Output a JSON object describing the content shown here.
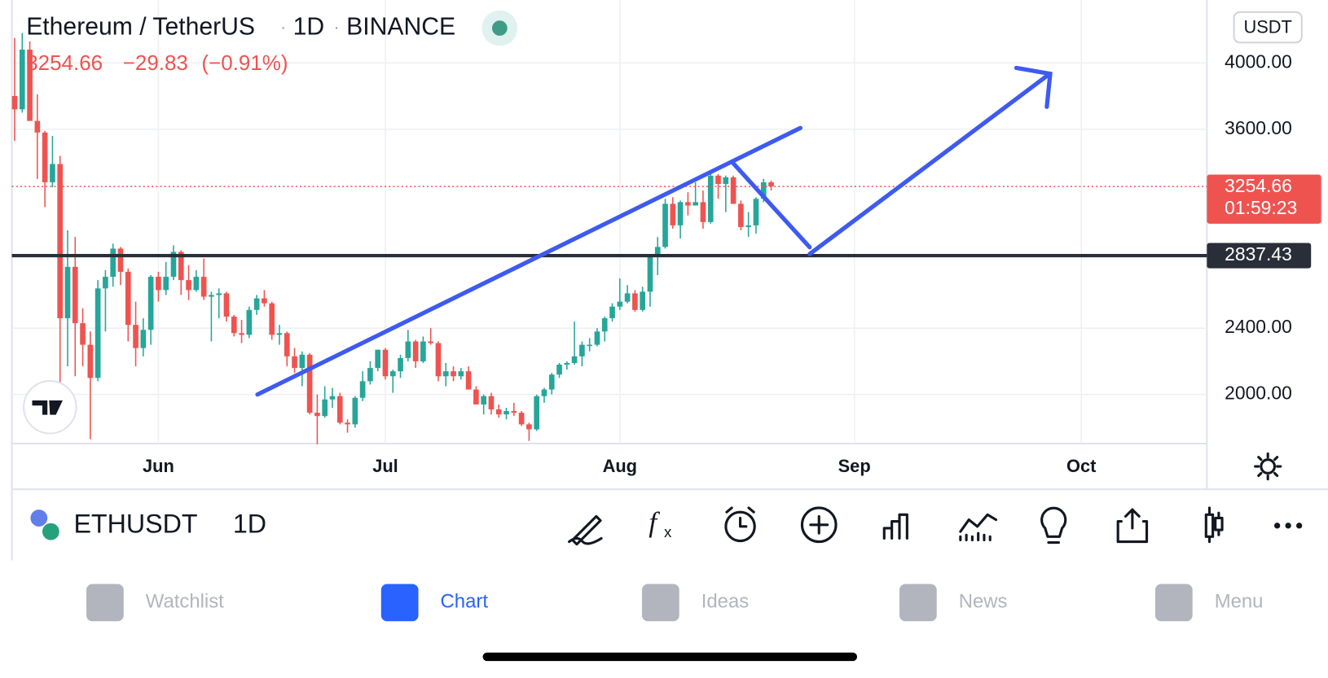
{
  "header": {
    "symbol_name": "Ethereum / TetherUS",
    "interval": "1D",
    "exchange": "BINANCE",
    "price": "3254.66",
    "change": "−29.83",
    "change_pct": "(−0.91%)",
    "currency": "USDT"
  },
  "chart_data": {
    "type": "candlestick",
    "open": [
      3800,
      3720,
      4080,
      3650,
      3580,
      3280,
      3390,
      2460,
      2770,
      2430,
      2300,
      2100,
      2640,
      2710,
      2880,
      2740,
      2420,
      2280,
      2390,
      2710,
      2630,
      2710,
      2860,
      2690,
      2630,
      2710,
      2590,
      2600,
      2610,
      2470,
      2370,
      2360,
      2510,
      2580,
      2550,
      2360,
      2370,
      2230,
      2160,
      2240,
      1890,
      1870,
      1970,
      1990,
      1830,
      1820,
      1980,
      2080,
      2160,
      2270,
      2110,
      2140,
      2220,
      2320,
      2200,
      2320,
      2310,
      2110,
      2140,
      2110,
      2140,
      2030,
      1940,
      1990,
      1910,
      1880,
      1900,
      1890,
      1820,
      1790,
      1990,
      2030,
      2120,
      2180,
      2190,
      2230,
      2300,
      2300,
      2380,
      2460,
      2530,
      2560,
      2610,
      2510,
      2620,
      2830,
      2890,
      3150,
      3020,
      3160,
      3140,
      3160,
      3040,
      3320,
      3270,
      3310,
      3150,
      3010,
      3020,
      3180,
      3280
    ],
    "high": [
      4150,
      4180,
      4130,
      3810,
      3590,
      3560,
      3440,
      2990,
      2950,
      2520,
      2380,
      2690,
      2750,
      2910,
      2890,
      2760,
      2560,
      2460,
      2720,
      2740,
      2800,
      2900,
      2870,
      2780,
      2750,
      2820,
      2620,
      2640,
      2620,
      2480,
      2450,
      2530,
      2600,
      2630,
      2560,
      2420,
      2380,
      2280,
      2260,
      2250,
      2000,
      2050,
      2040,
      2010,
      1850,
      1990,
      2140,
      2200,
      2270,
      2280,
      2150,
      2240,
      2390,
      2330,
      2350,
      2400,
      2320,
      2190,
      2170,
      2160,
      2170,
      2050,
      2000,
      2010,
      1940,
      1920,
      1950,
      1900,
      1830,
      2000,
      2040,
      2130,
      2190,
      2200,
      2440,
      2320,
      2340,
      2400,
      2470,
      2550,
      2700,
      2660,
      2630,
      2650,
      2840,
      2950,
      3180,
      3190,
      3170,
      3220,
      3280,
      3230,
      3330,
      3330,
      3320,
      3320,
      3170,
      3100,
      3190,
      3300,
      3290
    ],
    "low": [
      3530,
      3700,
      3650,
      3300,
      3130,
      3250,
      1950,
      2170,
      2110,
      2170,
      1730,
      2080,
      2380,
      2650,
      2660,
      2320,
      2170,
      2230,
      2300,
      2560,
      2600,
      2690,
      2600,
      2570,
      2620,
      2570,
      2320,
      2460,
      2440,
      2350,
      2310,
      2340,
      2480,
      2530,
      2330,
      2300,
      2170,
      2130,
      2050,
      1880,
      1700,
      1860,
      1920,
      1820,
      1770,
      1800,
      1960,
      2060,
      2140,
      2090,
      2010,
      2100,
      2200,
      2160,
      2190,
      2300,
      2080,
      2050,
      2080,
      2090,
      2030,
      1950,
      1880,
      1880,
      1860,
      1850,
      1870,
      1810,
      1720,
      1780,
      1950,
      2000,
      2100,
      2150,
      2180,
      2170,
      2260,
      2290,
      2320,
      2440,
      2510,
      2550,
      2500,
      2500,
      2530,
      2720,
      2880,
      3000,
      2940,
      3080,
      3140,
      3000,
      3030,
      3180,
      3100,
      3160,
      2990,
      2950,
      2970,
      3160,
      3230
    ],
    "close": [
      3720,
      4080,
      3650,
      3580,
      3280,
      3390,
      2460,
      2770,
      2430,
      2300,
      2100,
      2640,
      2710,
      2880,
      2740,
      2420,
      2280,
      2390,
      2710,
      2630,
      2710,
      2860,
      2690,
      2630,
      2710,
      2590,
      2600,
      2610,
      2470,
      2370,
      2360,
      2510,
      2580,
      2550,
      2360,
      2370,
      2230,
      2160,
      2240,
      1890,
      1870,
      1970,
      1990,
      1830,
      1820,
      1980,
      2080,
      2160,
      2270,
      2110,
      2140,
      2220,
      2320,
      2200,
      2320,
      2310,
      2110,
      2140,
      2110,
      2140,
      2030,
      1940,
      1990,
      1910,
      1880,
      1900,
      1890,
      1820,
      1790,
      1990,
      2030,
      2120,
      2180,
      2190,
      2230,
      2300,
      2300,
      2380,
      2460,
      2530,
      2560,
      2610,
      2510,
      2620,
      2830,
      2890,
      3150,
      3020,
      3160,
      3140,
      3160,
      3040,
      3320,
      3270,
      3310,
      3150,
      3010,
      3020,
      3180,
      3280,
      3254.66
    ],
    "up_color": "#26a69a",
    "down_color": "#ef5350",
    "xlim": [
      -0.37,
      157.6
    ],
    "xticks": [
      {
        "value": 19,
        "label": "Jun"
      },
      {
        "value": 49,
        "label": "Jul"
      },
      {
        "value": 80,
        "label": "Aug"
      },
      {
        "value": 111,
        "label": "Sep"
      },
      {
        "value": 141,
        "label": "Oct"
      }
    ],
    "ylim": [
      1704,
      4378
    ],
    "yticks": [
      {
        "value": 2000,
        "label": "2000.00"
      },
      {
        "value": 2400,
        "label": "2400.00"
      },
      {
        "value": 3600,
        "label": "3600.00"
      },
      {
        "value": 4000,
        "label": "4000.00"
      }
    ],
    "grid": true,
    "last_price": {
      "value": 3254.66,
      "label": "3254.66"
    },
    "countdown": "01:59:23",
    "horizontal_line": {
      "value": 2837.43,
      "label": "2837.43"
    }
  },
  "toolbar": {
    "symbol": "ETHUSDT",
    "interval": "1D"
  },
  "tabs": [
    {
      "label": "Watchlist",
      "active": false
    },
    {
      "label": "Chart",
      "active": true
    },
    {
      "label": "Ideas",
      "active": false
    },
    {
      "label": "News",
      "active": false
    },
    {
      "label": "Menu",
      "active": false
    }
  ]
}
